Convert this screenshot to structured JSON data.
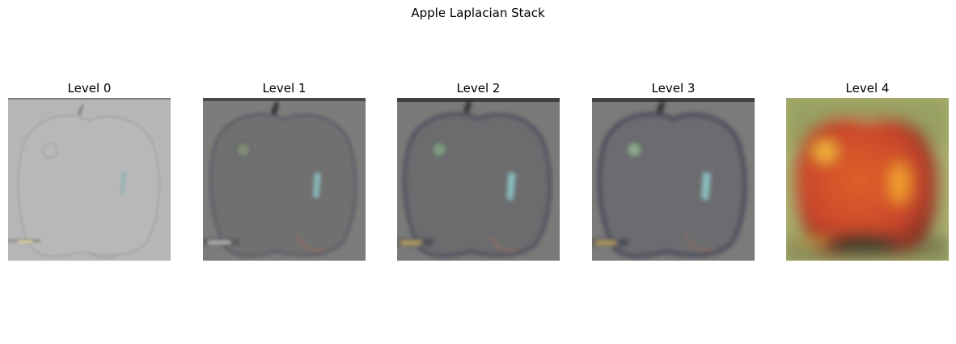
{
  "figure": {
    "title": "Apple Laplacian Stack"
  },
  "panels": [
    {
      "title": "Level 0",
      "image": "apple-laplacian-level-0"
    },
    {
      "title": "Level 1",
      "image": "apple-laplacian-level-1"
    },
    {
      "title": "Level 2",
      "image": "apple-laplacian-level-2"
    },
    {
      "title": "Level 3",
      "image": "apple-laplacian-level-3"
    },
    {
      "title": "Level 4",
      "image": "apple-laplacian-level-4"
    }
  ]
}
